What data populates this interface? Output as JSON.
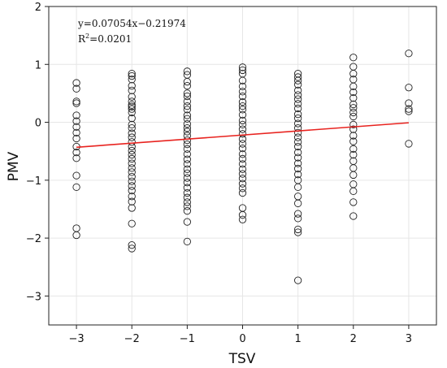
{
  "chart_data": {
    "type": "scatter",
    "title": "",
    "xlabel": "TSV",
    "ylabel": "PMV",
    "xlim": [
      -3.5,
      3.5
    ],
    "ylim": [
      -3.5,
      2.0
    ],
    "grid": true,
    "x_ticks": [
      -3,
      -2,
      -1,
      0,
      1,
      2,
      3
    ],
    "y_ticks": [
      -3,
      -2,
      -1,
      0,
      1,
      2
    ],
    "x_tick_labels": [
      "−3",
      "−2",
      "−1",
      "0",
      "1",
      "2",
      "3"
    ],
    "y_tick_labels": [
      "−3",
      "−2",
      "−1",
      "0",
      "1",
      "2"
    ],
    "annotation": {
      "equation": "y=0.07054x−0.21974",
      "r2_label": "R",
      "r2_superscript": "2",
      "r2_value": "=0.0201",
      "position": "top-left"
    },
    "fit_line": {
      "slope": 0.07054,
      "intercept": -0.21974,
      "x_range": [
        -3,
        3
      ],
      "color": "#e8231f"
    },
    "marker_color": "#222222",
    "series": [
      {
        "columns": [
          {
            "x": -3,
            "y": [
              0.68,
              0.58,
              0.36,
              0.33,
              0.12,
              0.02,
              -0.08,
              -0.18,
              -0.28,
              -0.42,
              -0.52,
              -0.62,
              -0.92,
              -1.12,
              -1.83,
              -1.95
            ]
          },
          {
            "x": -2,
            "y": [
              0.84,
              0.8,
              0.74,
              0.63,
              0.55,
              0.44,
              0.36,
              0.3,
              0.27,
              0.23,
              0.17,
              0.07,
              -0.04,
              -0.1,
              -0.19,
              -0.26,
              -0.34,
              -0.42,
              -0.49,
              -0.56,
              -0.63,
              -0.71,
              -0.79,
              -0.86,
              -0.94,
              -1.02,
              -1.1,
              -1.18,
              -1.28,
              -1.37,
              -1.48,
              -1.75,
              -2.12,
              -2.18
            ]
          },
          {
            "x": -1,
            "y": [
              0.88,
              0.82,
              0.7,
              0.63,
              0.5,
              0.45,
              0.36,
              0.28,
              0.22,
              0.12,
              0.06,
              -0.03,
              -0.1,
              -0.16,
              -0.23,
              -0.31,
              -0.38,
              -0.46,
              -0.55,
              -0.64,
              -0.72,
              -0.81,
              -0.88,
              -0.96,
              -1.04,
              -1.13,
              -1.22,
              -1.3,
              -1.38,
              -1.45,
              -1.53,
              -1.72,
              -2.06
            ]
          },
          {
            "x": 0,
            "y": [
              0.95,
              0.9,
              0.84,
              0.72,
              0.62,
              0.53,
              0.45,
              0.35,
              0.28,
              0.22,
              0.13,
              0.03,
              -0.04,
              -0.12,
              -0.2,
              -0.29,
              -0.37,
              -0.45,
              -0.55,
              -0.63,
              -0.72,
              -0.81,
              -0.89,
              -0.97,
              -1.06,
              -1.14,
              -1.22,
              -1.48,
              -1.6,
              -1.68
            ]
          },
          {
            "x": 1,
            "y": [
              0.84,
              0.78,
              0.72,
              0.65,
              0.55,
              0.47,
              0.4,
              0.32,
              0.24,
              0.14,
              0.07,
              -0.02,
              -0.1,
              -0.18,
              -0.26,
              -0.34,
              -0.42,
              -0.52,
              -0.61,
              -0.71,
              -0.8,
              -0.9,
              -1.0,
              -1.12,
              -1.28,
              -1.4,
              -1.58,
              -1.66,
              -1.85,
              -1.9,
              -2.73
            ]
          },
          {
            "x": 2,
            "y": [
              1.12,
              0.96,
              0.84,
              0.74,
              0.62,
              0.52,
              0.42,
              0.31,
              0.25,
              0.17,
              0.1,
              -0.04,
              -0.12,
              -0.23,
              -0.33,
              -0.46,
              -0.56,
              -0.67,
              -0.79,
              -0.91,
              -1.07,
              -1.19,
              -1.38,
              -1.62
            ]
          },
          {
            "x": 3,
            "y": [
              1.19,
              0.6,
              0.33,
              0.23,
              0.19,
              -0.37
            ]
          }
        ]
      }
    ]
  }
}
